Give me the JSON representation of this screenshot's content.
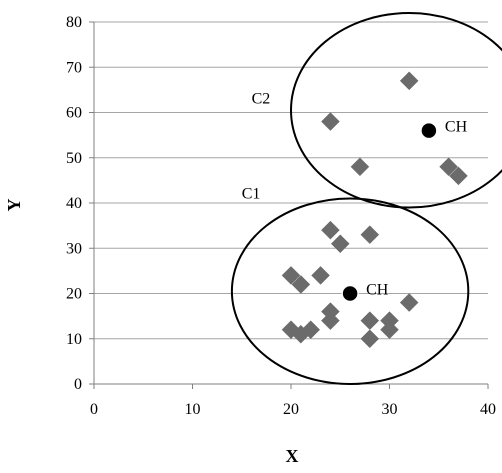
{
  "chart_data": {
    "type": "scatter",
    "title": "",
    "xlabel": "X",
    "ylabel": "Y",
    "xlim": [
      0,
      40
    ],
    "ylim": [
      0,
      80
    ],
    "x_ticks": [
      "0",
      "10",
      "20",
      "30",
      "40"
    ],
    "y_ticks": [
      "0",
      "10",
      "20",
      "30",
      "40",
      "50",
      "60",
      "70",
      "80"
    ],
    "grid": "horizontal",
    "legend": "none",
    "series": [
      {
        "marker": "diamond",
        "color": "#6b6b6b",
        "points": [
          {
            "x": 20,
            "y": 12
          },
          {
            "x": 21,
            "y": 11
          },
          {
            "x": 22,
            "y": 12
          },
          {
            "x": 20,
            "y": 24
          },
          {
            "x": 21,
            "y": 22
          },
          {
            "x": 23,
            "y": 24
          },
          {
            "x": 24,
            "y": 34
          },
          {
            "x": 25,
            "y": 31
          },
          {
            "x": 28,
            "y": 33
          },
          {
            "x": 24,
            "y": 16
          },
          {
            "x": 24,
            "y": 14
          },
          {
            "x": 28,
            "y": 14
          },
          {
            "x": 28,
            "y": 10
          },
          {
            "x": 30,
            "y": 14
          },
          {
            "x": 30,
            "y": 12
          },
          {
            "x": 32,
            "y": 18
          },
          {
            "x": 24,
            "y": 58
          },
          {
            "x": 27,
            "y": 48
          },
          {
            "x": 32,
            "y": 67
          },
          {
            "x": 36,
            "y": 48
          },
          {
            "x": 37,
            "y": 46
          }
        ]
      }
    ],
    "cluster_heads": [
      {
        "label": "CH",
        "x": 26,
        "y": 20,
        "color": "#000000"
      },
      {
        "label": "CH",
        "x": 34,
        "y": 56,
        "color": "#000000"
      }
    ],
    "clusters": [
      {
        "label": "C1",
        "label_x": 15,
        "label_y": 41,
        "center_x": 26,
        "center_y": 20.5,
        "radius_x": 12,
        "radius_y": 20.5
      },
      {
        "label": "C2",
        "label_x": 16,
        "label_y": 62,
        "center_x": 32,
        "center_y": 60.5,
        "radius_x": 12,
        "radius_y": 21.5
      }
    ]
  }
}
